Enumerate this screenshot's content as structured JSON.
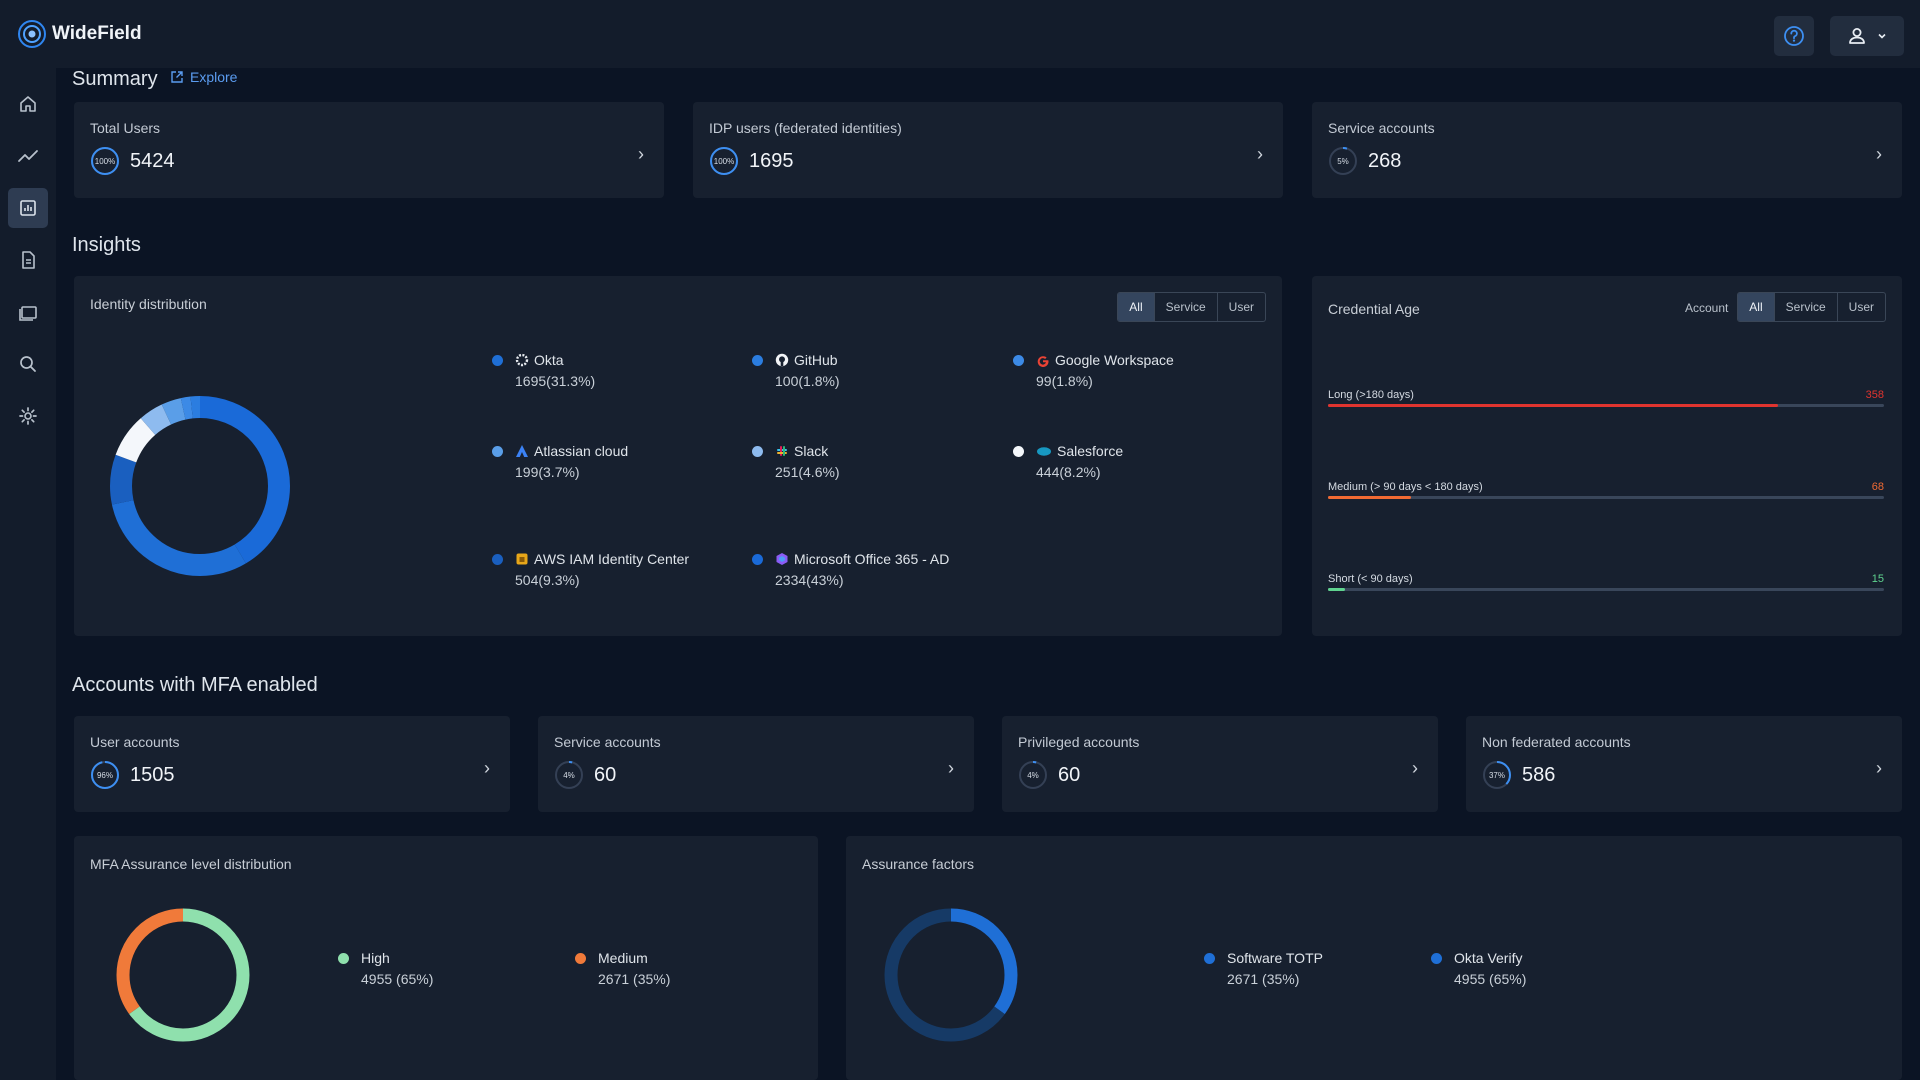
{
  "app": {
    "name": "WideField"
  },
  "header": {
    "help_icon": "help-icon",
    "user_icon": "user-icon"
  },
  "sidebar": {
    "items": [
      {
        "name": "home",
        "icon": "home-icon"
      },
      {
        "name": "trends",
        "icon": "trend-icon"
      },
      {
        "name": "dashboard",
        "icon": "dashboard-icon",
        "active": true
      },
      {
        "name": "reports",
        "icon": "document-icon"
      },
      {
        "name": "collections",
        "icon": "folders-icon"
      },
      {
        "name": "search",
        "icon": "search-icon"
      },
      {
        "name": "settings",
        "icon": "gear-icon"
      }
    ]
  },
  "summary": {
    "title": "Summary",
    "explore_label": "Explore",
    "cards": [
      {
        "label": "Total Users",
        "value": "5424",
        "pct": "100%",
        "fraction": 1.0
      },
      {
        "label": "IDP users (federated identities)",
        "value": "1695",
        "pct": "100%",
        "fraction": 1.0
      },
      {
        "label": "Service accounts",
        "value": "268",
        "pct": "5%",
        "fraction": 0.05
      }
    ]
  },
  "insights": {
    "title": "Insights",
    "identity": {
      "title": "Identity distribution",
      "filters": [
        "All",
        "Service",
        "User"
      ],
      "active_filter": "All",
      "items": [
        {
          "name": "Okta",
          "count": "1695",
          "share": "(31.3%)",
          "icon": "okta-icon",
          "dot": "#1f6fd6"
        },
        {
          "name": "GitHub",
          "count": "100",
          "share": "(1.8%)",
          "icon": "github-icon",
          "dot": "#2b7de0"
        },
        {
          "name": "Google Workspace",
          "count": "99",
          "share": "(1.8%)",
          "icon": "google-icon",
          "dot": "#3c8ae6"
        },
        {
          "name": "Atlassian cloud",
          "count": "199",
          "share": "(3.7%)",
          "icon": "atlassian-icon",
          "dot": "#5a9ee8"
        },
        {
          "name": "Slack",
          "count": "251",
          "share": "(4.6%)",
          "icon": "slack-icon",
          "dot": "#8ebbef"
        },
        {
          "name": "Salesforce",
          "count": "444",
          "share": "(8.2%)",
          "icon": "salesforce-icon",
          "dot": "#f4f7fb"
        },
        {
          "name": "AWS IAM Identity Center",
          "count": "504",
          "share": "(9.3%)",
          "icon": "aws-icon",
          "dot": "#1a5fbf"
        },
        {
          "name": "Microsoft Office 365 - AD",
          "count": "2334",
          "share": "(43%)",
          "icon": "office365-icon",
          "dot": "#1a6ad8"
        }
      ]
    },
    "credential": {
      "title": "Credential Age",
      "account_label": "Account",
      "filters": [
        "All",
        "Service",
        "User"
      ],
      "active_filter": "All",
      "rows": [
        {
          "label": "Long (>180 days)",
          "count": "358",
          "fraction": 0.81,
          "color": "#e0342f"
        },
        {
          "label": "Medium (> 90 days < 180 days)",
          "count": "68",
          "fraction": 0.15,
          "color": "#f06a33"
        },
        {
          "label": "Short (< 90 days)",
          "count": "15",
          "fraction": 0.03,
          "color": "#5fd38f"
        }
      ]
    }
  },
  "mfa": {
    "title": "Accounts with MFA enabled",
    "cards": [
      {
        "label": "User accounts",
        "value": "1505",
        "pct": "96%",
        "fraction": 0.96
      },
      {
        "label": "Service accounts",
        "value": "60",
        "pct": "4%",
        "fraction": 0.04
      },
      {
        "label": "Privileged accounts",
        "value": "60",
        "pct": "4%",
        "fraction": 0.04
      },
      {
        "label": "Non federated accounts",
        "value": "586",
        "pct": "37%",
        "fraction": 0.37
      }
    ],
    "assurance": {
      "title": "MFA Assurance level distribution",
      "items": [
        {
          "name": "High",
          "count": "4955",
          "share": "(65%)",
          "color": "#8fe0ad"
        },
        {
          "name": "Medium",
          "count": "2671",
          "share": "(35%)",
          "color": "#f07a3a"
        }
      ]
    },
    "factors": {
      "title": "Assurance factors",
      "items": [
        {
          "name": "Software TOTP",
          "count": "2671",
          "share": "(35%)",
          "color": "#1f6fd6"
        },
        {
          "name": "Okta Verify",
          "count": "4955",
          "share": "(65%)",
          "color": "#163a66"
        }
      ]
    }
  }
}
